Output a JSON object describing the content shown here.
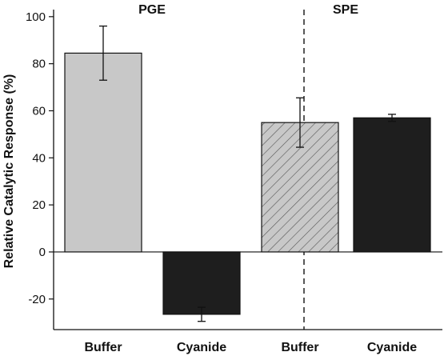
{
  "chart_data": {
    "type": "bar",
    "ylabel": "Relative Catalytic Response (%)",
    "ylim": [
      -33,
      103
    ],
    "yticks": [
      -20,
      0,
      20,
      40,
      60,
      80,
      100
    ],
    "grid": false,
    "panels": [
      {
        "name": "PGE",
        "categories": [
          "Buffer",
          "Cyanide"
        ]
      },
      {
        "name": "SPE",
        "categories": [
          "Buffer",
          "Cyanide"
        ]
      }
    ],
    "bars": [
      {
        "panel": "PGE",
        "category": "Buffer",
        "value": 84.5,
        "error": 11.5,
        "fill": "#c8c8c8",
        "hatch": false
      },
      {
        "panel": "PGE",
        "category": "Cyanide",
        "value": -26.5,
        "error": 3.0,
        "fill": "#1e1e1e",
        "hatch": false
      },
      {
        "panel": "SPE",
        "category": "Buffer",
        "value": 55.0,
        "error": 10.5,
        "fill": "#c8c8c8",
        "hatch": true
      },
      {
        "panel": "SPE",
        "category": "Cyanide",
        "value": 57.0,
        "error": 1.5,
        "fill": "#1e1e1e",
        "hatch": false
      }
    ]
  }
}
